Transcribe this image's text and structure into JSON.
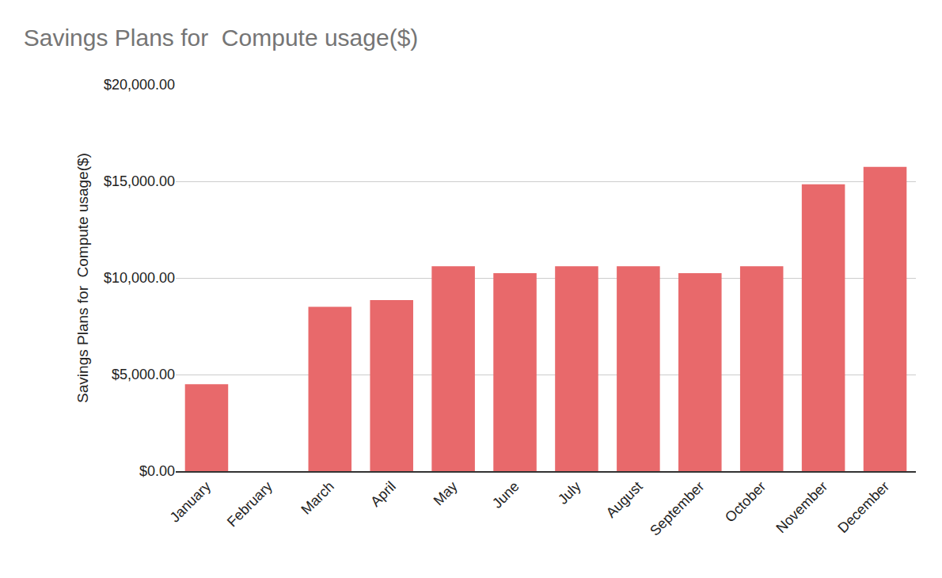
{
  "chart_data": {
    "type": "bar",
    "title": "Savings Plans for  Compute usage($)",
    "y_label": "Savings Plans for  Compute usage($)",
    "categories": [
      "January",
      "February",
      "March",
      "April",
      "May",
      "June",
      "July",
      "August",
      "September",
      "October",
      "November",
      "December"
    ],
    "values": [
      4500,
      0,
      8500,
      8850,
      10600,
      10250,
      10600,
      10600,
      10250,
      10600,
      14850,
      15750
    ],
    "color": "#e8696b",
    "ylim": [
      0,
      20000
    ],
    "yticks": [
      {
        "value": 0,
        "label": "$0.00"
      },
      {
        "value": 5000,
        "label": "$5,000.00"
      },
      {
        "value": 10000,
        "label": "$10,000.00"
      },
      {
        "value": 15000,
        "label": "$15,000.00"
      },
      {
        "value": 20000,
        "label": "$20,000.00"
      }
    ],
    "grid": true
  }
}
